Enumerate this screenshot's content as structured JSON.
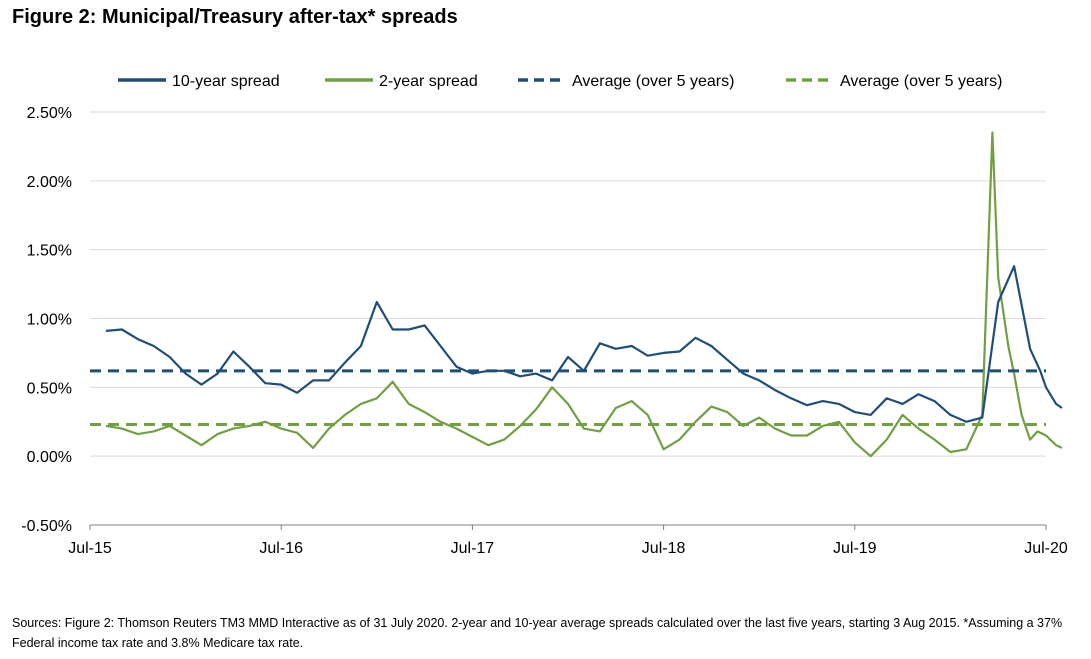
{
  "title": "Figure 2: Municipal/Treasury after-tax* spreads",
  "source_note": "Sources: Figure 2: Thomson Reuters TM3 MMD Interactive as of 31 July 2020. 2-year and 10-year average spreads calculated over the last five years, starting 3 Aug 2015. *Assuming a 37% Federal income tax rate and 3.8% Medicare tax rate.",
  "colors": {
    "ten_year": "#1F4E79",
    "two_year": "#70A043",
    "grid": "#D9D9D9",
    "axis": "#808080"
  },
  "chart_data": {
    "type": "line",
    "title": "Figure 2: Municipal/Treasury after-tax* spreads",
    "xlabel": "",
    "ylabel": "",
    "ylim": [
      -0.5,
      2.5
    ],
    "xlim": [
      "2015-07",
      "2020-07"
    ],
    "y_ticks": [
      "2.50%",
      "2.00%",
      "1.50%",
      "1.00%",
      "0.50%",
      "0.00%",
      "-0.50%"
    ],
    "y_tick_values": [
      2.5,
      2.0,
      1.5,
      1.0,
      0.5,
      0.0,
      -0.5
    ],
    "x_ticks": [
      "Jul-15",
      "Jul-16",
      "Jul-17",
      "Jul-18",
      "Jul-19",
      "Jul-20"
    ],
    "x_tick_values": [
      "2015-07",
      "2016-07",
      "2017-07",
      "2018-07",
      "2019-07",
      "2020-07"
    ],
    "grid": "horizontal",
    "legend_position": "top",
    "legend": [
      "10-year spread",
      "2-year spread",
      "Average (over 5 years)",
      "Average (over 5 years)"
    ],
    "series": [
      {
        "name": "10-year spread",
        "style": "solid",
        "color": "#1F4E79",
        "points": [
          [
            "2015-08",
            0.91
          ],
          [
            "2015-09",
            0.92
          ],
          [
            "2015-10",
            0.85
          ],
          [
            "2015-11",
            0.8
          ],
          [
            "2015-12",
            0.72
          ],
          [
            "2016-01",
            0.6
          ],
          [
            "2016-02",
            0.52
          ],
          [
            "2016-03",
            0.6
          ],
          [
            "2016-04",
            0.76
          ],
          [
            "2016-05",
            0.65
          ],
          [
            "2016-06",
            0.53
          ],
          [
            "2016-07",
            0.52
          ],
          [
            "2016-08",
            0.46
          ],
          [
            "2016-09",
            0.55
          ],
          [
            "2016-10",
            0.55
          ],
          [
            "2016-11",
            0.68
          ],
          [
            "2016-12",
            0.8
          ],
          [
            "2017-01",
            1.12
          ],
          [
            "2017-02",
            0.92
          ],
          [
            "2017-03",
            0.92
          ],
          [
            "2017-04",
            0.95
          ],
          [
            "2017-05",
            0.8
          ],
          [
            "2017-06",
            0.65
          ],
          [
            "2017-07",
            0.6
          ],
          [
            "2017-08",
            0.62
          ],
          [
            "2017-09",
            0.62
          ],
          [
            "2017-10",
            0.58
          ],
          [
            "2017-11",
            0.6
          ],
          [
            "2017-12",
            0.55
          ],
          [
            "2018-01",
            0.72
          ],
          [
            "2018-02",
            0.62
          ],
          [
            "2018-03",
            0.82
          ],
          [
            "2018-04",
            0.78
          ],
          [
            "2018-05",
            0.8
          ],
          [
            "2018-06",
            0.73
          ],
          [
            "2018-07",
            0.75
          ],
          [
            "2018-08",
            0.76
          ],
          [
            "2018-09",
            0.86
          ],
          [
            "2018-10",
            0.8
          ],
          [
            "2018-11",
            0.7
          ],
          [
            "2018-12",
            0.6
          ],
          [
            "2019-01",
            0.55
          ],
          [
            "2019-02",
            0.48
          ],
          [
            "2019-03",
            0.42
          ],
          [
            "2019-04",
            0.37
          ],
          [
            "2019-05",
            0.4
          ],
          [
            "2019-06",
            0.38
          ],
          [
            "2019-07",
            0.32
          ],
          [
            "2019-08",
            0.3
          ],
          [
            "2019-09",
            0.42
          ],
          [
            "2019-10",
            0.38
          ],
          [
            "2019-11",
            0.45
          ],
          [
            "2019-12",
            0.4
          ],
          [
            "2020-01",
            0.3
          ],
          [
            "2020-02",
            0.25
          ],
          [
            "2020-03",
            0.28
          ],
          [
            "2020-04",
            1.12
          ],
          [
            "2020-05",
            1.38
          ],
          [
            "2020-06",
            0.78
          ],
          [
            "2020-06-20",
            0.62
          ],
          [
            "2020-07",
            0.5
          ],
          [
            "2020-07-20",
            0.38
          ],
          [
            "2020-07-31",
            0.35
          ]
        ]
      },
      {
        "name": "2-year spread",
        "style": "solid",
        "color": "#70A043",
        "points": [
          [
            "2015-08",
            0.22
          ],
          [
            "2015-09",
            0.2
          ],
          [
            "2015-10",
            0.16
          ],
          [
            "2015-11",
            0.18
          ],
          [
            "2015-12",
            0.22
          ],
          [
            "2016-01",
            0.15
          ],
          [
            "2016-02",
            0.08
          ],
          [
            "2016-03",
            0.16
          ],
          [
            "2016-04",
            0.2
          ],
          [
            "2016-05",
            0.22
          ],
          [
            "2016-06",
            0.25
          ],
          [
            "2016-07",
            0.2
          ],
          [
            "2016-08",
            0.17
          ],
          [
            "2016-09",
            0.06
          ],
          [
            "2016-10",
            0.2
          ],
          [
            "2016-11",
            0.3
          ],
          [
            "2016-12",
            0.38
          ],
          [
            "2017-01",
            0.42
          ],
          [
            "2017-02",
            0.54
          ],
          [
            "2017-03",
            0.38
          ],
          [
            "2017-04",
            0.32
          ],
          [
            "2017-05",
            0.25
          ],
          [
            "2017-06",
            0.2
          ],
          [
            "2017-07",
            0.14
          ],
          [
            "2017-08",
            0.08
          ],
          [
            "2017-09",
            0.12
          ],
          [
            "2017-10",
            0.22
          ],
          [
            "2017-11",
            0.34
          ],
          [
            "2017-12",
            0.5
          ],
          [
            "2018-01",
            0.38
          ],
          [
            "2018-02",
            0.2
          ],
          [
            "2018-03",
            0.18
          ],
          [
            "2018-04",
            0.35
          ],
          [
            "2018-05",
            0.4
          ],
          [
            "2018-06",
            0.3
          ],
          [
            "2018-07",
            0.05
          ],
          [
            "2018-08",
            0.12
          ],
          [
            "2018-09",
            0.25
          ],
          [
            "2018-10",
            0.36
          ],
          [
            "2018-11",
            0.32
          ],
          [
            "2018-12",
            0.22
          ],
          [
            "2019-01",
            0.28
          ],
          [
            "2019-02",
            0.2
          ],
          [
            "2019-03",
            0.15
          ],
          [
            "2019-04",
            0.15
          ],
          [
            "2019-05",
            0.22
          ],
          [
            "2019-06",
            0.25
          ],
          [
            "2019-07",
            0.1
          ],
          [
            "2019-08",
            0.0
          ],
          [
            "2019-09",
            0.12
          ],
          [
            "2019-10",
            0.3
          ],
          [
            "2019-11",
            0.2
          ],
          [
            "2019-12",
            0.12
          ],
          [
            "2020-01",
            0.03
          ],
          [
            "2020-02",
            0.05
          ],
          [
            "2020-03",
            0.3
          ],
          [
            "2020-03-20",
            2.35
          ],
          [
            "2020-04",
            1.3
          ],
          [
            "2020-04-20",
            0.8
          ],
          [
            "2020-05",
            0.6
          ],
          [
            "2020-05-15",
            0.3
          ],
          [
            "2020-06",
            0.12
          ],
          [
            "2020-06-15",
            0.18
          ],
          [
            "2020-07",
            0.15
          ],
          [
            "2020-07-20",
            0.08
          ],
          [
            "2020-07-31",
            0.06
          ]
        ]
      },
      {
        "name": "Average (over 5 years)",
        "style": "dashed",
        "color": "#1F4E79",
        "constant": 0.62
      },
      {
        "name": "Average (over 5 years)",
        "style": "dashed",
        "color": "#70A043",
        "constant": 0.23
      }
    ]
  }
}
